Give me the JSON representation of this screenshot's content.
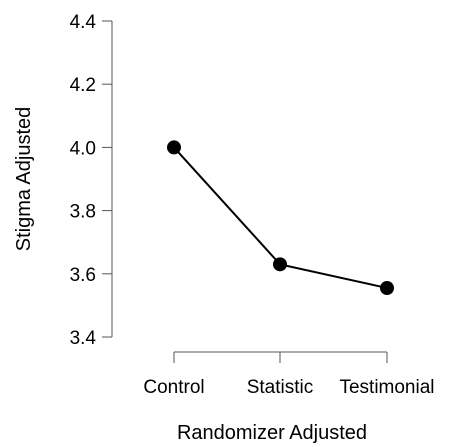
{
  "chart_data": {
    "type": "line",
    "categories": [
      "Control",
      "Statistic",
      "Testimonial"
    ],
    "series": [
      {
        "values": [
          4.0,
          3.63,
          3.555
        ]
      }
    ],
    "xlabel": "Randomizer Adjusted",
    "ylabel": "Stigma Adjusted",
    "yticks": [
      "3.4",
      "3.6",
      "3.8",
      "4.0",
      "4.2",
      "4.4"
    ],
    "ylim": [
      3.4,
      4.4
    ],
    "grid": false,
    "legend": "none",
    "colors": {
      "line": "#000000",
      "axis": "#555555"
    }
  }
}
